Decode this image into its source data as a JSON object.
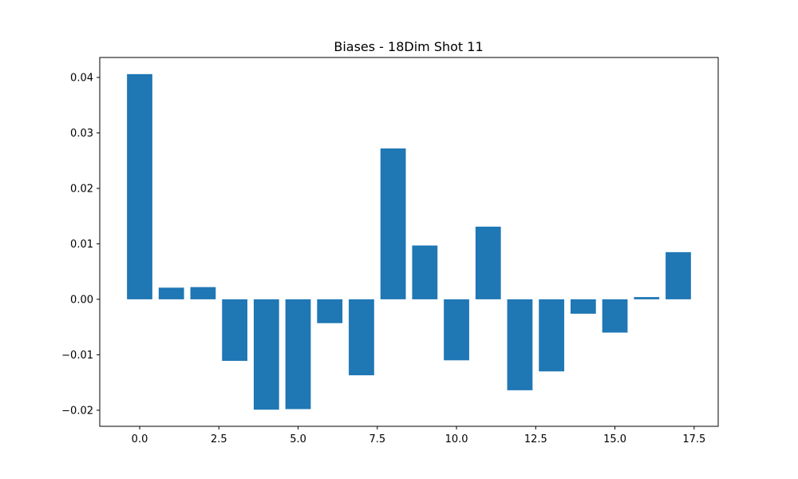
{
  "chart_data": {
    "type": "bar",
    "title": "Biases - 18Dim Shot 11",
    "xlabel": "",
    "ylabel": "",
    "x": [
      0,
      1,
      2,
      3,
      4,
      5,
      6,
      7,
      8,
      9,
      10,
      11,
      12,
      13,
      14,
      15,
      16,
      17
    ],
    "values": [
      0.0406,
      0.0021,
      0.0022,
      -0.0111,
      -0.0199,
      -0.0198,
      -0.0043,
      -0.0137,
      0.0272,
      0.0097,
      -0.011,
      0.0131,
      -0.0164,
      -0.013,
      -0.0026,
      -0.006,
      0.0004,
      0.0085
    ],
    "xlim": [
      -1.26,
      18.26
    ],
    "ylim": [
      -0.0229,
      0.0436
    ],
    "xticks": [
      0.0,
      2.5,
      5.0,
      7.5,
      10.0,
      12.5,
      15.0,
      17.5
    ],
    "xtick_labels": [
      "0.0",
      "2.5",
      "5.0",
      "7.5",
      "10.0",
      "12.5",
      "15.0",
      "17.5"
    ],
    "yticks": [
      -0.02,
      -0.01,
      0.0,
      0.01,
      0.02,
      0.03,
      0.04
    ],
    "ytick_labels": [
      "−0.02",
      "−0.01",
      "0.00",
      "0.01",
      "0.02",
      "0.03",
      "0.04"
    ],
    "bar_color": "#1f77b4",
    "grid": false,
    "legend": "none"
  }
}
